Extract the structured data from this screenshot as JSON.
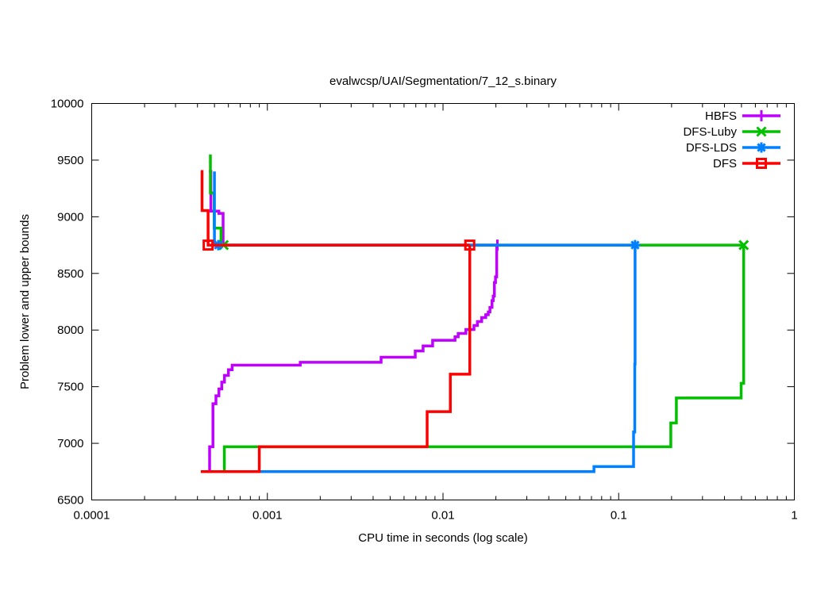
{
  "chart_data": {
    "type": "line",
    "title": "evalwcsp/UAI/Segmentation/7_12_s.binary",
    "xlabel": "CPU time in seconds (log scale)",
    "ylabel": "Problem lower and upper bounds",
    "xscale": "log",
    "xlim": [
      0.0001,
      1
    ],
    "ylim": [
      6500,
      10000
    ],
    "x_ticks": [
      0.0001,
      0.001,
      0.01,
      0.1,
      1
    ],
    "x_tick_labels": [
      "0.0001",
      "0.001",
      "0.01",
      "0.1",
      "1"
    ],
    "y_ticks": [
      6500,
      7000,
      7500,
      8000,
      8500,
      9000,
      9500,
      10000
    ],
    "y_tick_labels": [
      "6500",
      "7000",
      "7500",
      "8000",
      "8500",
      "9000",
      "9500",
      "10000"
    ],
    "grid": false,
    "legend_position": "top-right",
    "axis_color": "#000000",
    "background_color": "#ffffff",
    "series": [
      {
        "name": "HBFS",
        "color": "#c000ff",
        "marker": "plus",
        "upper_bound": [
          [
            0.000465,
            9400
          ],
          [
            0.000477,
            9400
          ],
          [
            0.000477,
            9050
          ],
          [
            0.00053,
            9050
          ],
          [
            0.00053,
            9030
          ],
          [
            0.00056,
            9030
          ],
          [
            0.00056,
            8750
          ],
          [
            0.0204,
            8750
          ]
        ],
        "lower_bound": [
          [
            0.000469,
            6750
          ],
          [
            0.000469,
            6970
          ],
          [
            0.00049,
            6970
          ],
          [
            0.00049,
            7350
          ],
          [
            0.00051,
            7350
          ],
          [
            0.00051,
            7420
          ],
          [
            0.00053,
            7420
          ],
          [
            0.00053,
            7480
          ],
          [
            0.00055,
            7480
          ],
          [
            0.00055,
            7540
          ],
          [
            0.00057,
            7540
          ],
          [
            0.00057,
            7600
          ],
          [
            0.0006,
            7600
          ],
          [
            0.0006,
            7650
          ],
          [
            0.00063,
            7650
          ],
          [
            0.00063,
            7690
          ],
          [
            0.00154,
            7690
          ],
          [
            0.00154,
            7715
          ],
          [
            0.00444,
            7715
          ],
          [
            0.00444,
            7760
          ],
          [
            0.00695,
            7760
          ],
          [
            0.00695,
            7815
          ],
          [
            0.0077,
            7815
          ],
          [
            0.0077,
            7860
          ],
          [
            0.00873,
            7860
          ],
          [
            0.00873,
            7910
          ],
          [
            0.0117,
            7910
          ],
          [
            0.0117,
            7940
          ],
          [
            0.0122,
            7940
          ],
          [
            0.0122,
            7970
          ],
          [
            0.0135,
            7970
          ],
          [
            0.0135,
            8005
          ],
          [
            0.015,
            8005
          ],
          [
            0.015,
            8040
          ],
          [
            0.0157,
            8040
          ],
          [
            0.0157,
            8075
          ],
          [
            0.0166,
            8075
          ],
          [
            0.0166,
            8110
          ],
          [
            0.0175,
            8110
          ],
          [
            0.0175,
            8135
          ],
          [
            0.0181,
            8135
          ],
          [
            0.0181,
            8160
          ],
          [
            0.0185,
            8160
          ],
          [
            0.0185,
            8200
          ],
          [
            0.019,
            8200
          ],
          [
            0.019,
            8260
          ],
          [
            0.0193,
            8260
          ],
          [
            0.0193,
            8300
          ],
          [
            0.0196,
            8300
          ],
          [
            0.0196,
            8420
          ],
          [
            0.0199,
            8420
          ],
          [
            0.0199,
            8470
          ],
          [
            0.0202,
            8470
          ],
          [
            0.0202,
            8750
          ],
          [
            0.0204,
            8750
          ]
        ],
        "marker_points": [
          [
            0.0204,
            8750
          ]
        ]
      },
      {
        "name": "DFS-Luby",
        "color": "#00c000",
        "marker": "cross",
        "upper_bound": [
          [
            0.000474,
            9550
          ],
          [
            0.000474,
            9210
          ],
          [
            0.000498,
            9210
          ],
          [
            0.000498,
            8900
          ],
          [
            0.000545,
            8900
          ],
          [
            0.000545,
            8750
          ],
          [
            0.515,
            8750
          ]
        ],
        "lower_bound": [
          [
            0.000474,
            6750
          ],
          [
            0.000569,
            6750
          ],
          [
            0.000569,
            6970
          ],
          [
            0.198,
            6970
          ],
          [
            0.198,
            7180
          ],
          [
            0.213,
            7180
          ],
          [
            0.213,
            7400
          ],
          [
            0.498,
            7400
          ],
          [
            0.498,
            7530
          ],
          [
            0.515,
            7530
          ],
          [
            0.515,
            8750
          ]
        ],
        "marker_points": [
          [
            0.000564,
            8750
          ],
          [
            0.515,
            8750
          ]
        ]
      },
      {
        "name": "DFS-LDS",
        "color": "#0080ff",
        "marker": "asterisk",
        "upper_bound": [
          [
            0.0005,
            9400
          ],
          [
            0.0005,
            8750
          ],
          [
            0.124,
            8750
          ]
        ],
        "lower_bound": [
          [
            0.0005,
            6750
          ],
          [
            0.0723,
            6750
          ],
          [
            0.0723,
            6795
          ],
          [
            0.1215,
            6795
          ],
          [
            0.1215,
            7100
          ],
          [
            0.1235,
            7100
          ],
          [
            0.1235,
            7700
          ],
          [
            0.124,
            7700
          ],
          [
            0.124,
            8750
          ]
        ],
        "marker_points": [
          [
            0.000526,
            8750
          ],
          [
            0.124,
            8750
          ]
        ]
      },
      {
        "name": "DFS",
        "color": "#ff0000",
        "marker": "square",
        "upper_bound": [
          [
            0.000418,
            9400
          ],
          [
            0.000425,
            9400
          ],
          [
            0.000425,
            9055
          ],
          [
            0.00046,
            9055
          ],
          [
            0.00046,
            8750
          ],
          [
            0.0142,
            8750
          ]
        ],
        "lower_bound": [
          [
            0.000418,
            6750
          ],
          [
            0.0009,
            6750
          ],
          [
            0.0009,
            6970
          ],
          [
            0.00812,
            6970
          ],
          [
            0.00812,
            7280
          ],
          [
            0.011,
            7280
          ],
          [
            0.011,
            7610
          ],
          [
            0.0142,
            7610
          ],
          [
            0.0142,
            8750
          ]
        ],
        "marker_points": [
          [
            0.00046,
            8750
          ],
          [
            0.0142,
            8750
          ]
        ]
      }
    ]
  }
}
